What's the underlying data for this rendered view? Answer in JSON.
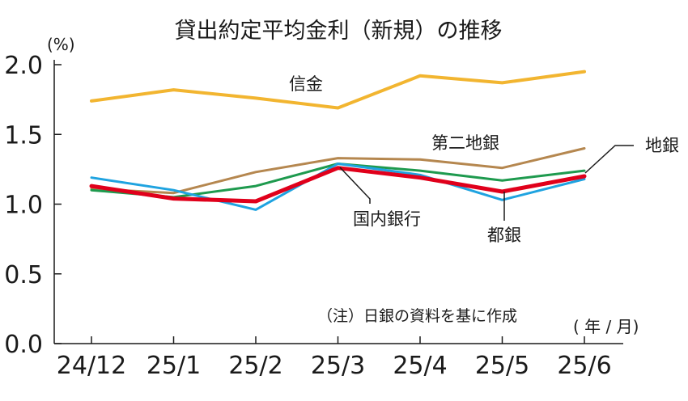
{
  "chart_data": {
    "type": "line",
    "title": "貸出約定平均金利（新規）の推移",
    "y_unit": "(%)",
    "x_unit": "( 年 / 月)",
    "note": "（注）日銀の資料を基に作成",
    "categories": [
      "24/12",
      "25/1",
      "25/2",
      "25/3",
      "25/4",
      "25/5",
      "25/6"
    ],
    "ylim": [
      0.0,
      2.0
    ],
    "yticks": [
      "0.0",
      "0.5",
      "1.0",
      "1.5",
      "2.0"
    ],
    "grid": false,
    "series": [
      {
        "name": "信金",
        "color": "#f2b530",
        "values": [
          1.74,
          1.82,
          1.76,
          1.69,
          1.92,
          1.87,
          1.95
        ]
      },
      {
        "name": "第二地銀",
        "color": "#b5874f",
        "values": [
          1.11,
          1.08,
          1.23,
          1.33,
          1.32,
          1.26,
          1.4
        ]
      },
      {
        "name": "地銀",
        "color": "#1e9a4e",
        "values": [
          1.1,
          1.05,
          1.13,
          1.29,
          1.24,
          1.17,
          1.24
        ]
      },
      {
        "name": "都銀",
        "color": "#1fa3e0",
        "values": [
          1.19,
          1.1,
          0.96,
          1.29,
          1.21,
          1.03,
          1.18
        ]
      },
      {
        "name": "国内銀行",
        "color": "#e0001b",
        "values": [
          1.13,
          1.04,
          1.02,
          1.26,
          1.19,
          1.09,
          1.2
        ]
      }
    ]
  }
}
